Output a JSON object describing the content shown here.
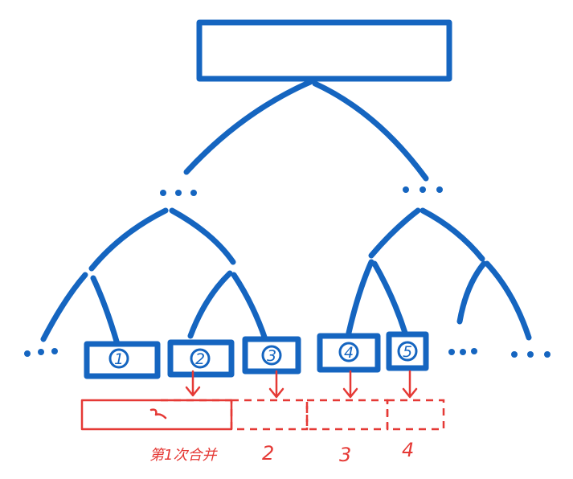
{
  "tree": {
    "leaf_nodes": [
      "①",
      "②",
      "③",
      "④",
      "⑤"
    ],
    "ellipsis": [
      "…",
      "…",
      "…",
      "…",
      "…",
      "…"
    ]
  },
  "merge_labels": [
    "第1次合并",
    "2",
    "3",
    "4"
  ]
}
